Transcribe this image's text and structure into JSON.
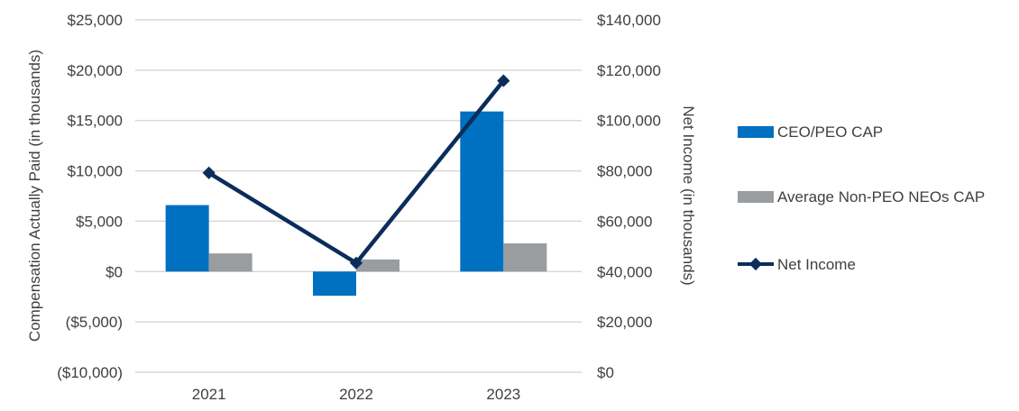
{
  "chart_data": {
    "type": "bar+line",
    "categories": [
      "2021",
      "2022",
      "2023"
    ],
    "series": [
      {
        "name": "CEO/PEO CAP",
        "type": "bar",
        "axis": "left",
        "color": "#0070C0",
        "values": [
          6600,
          -2400,
          15900
        ]
      },
      {
        "name": "Average Non-PEO NEOs CAP",
        "type": "bar",
        "axis": "left",
        "color": "#999DA0",
        "values": [
          1800,
          1200,
          2800
        ]
      },
      {
        "name": "Net Income",
        "type": "line",
        "axis": "right",
        "color": "#0B2D5B",
        "marker": "diamond",
        "values": [
          79200,
          43400,
          115800
        ]
      }
    ],
    "ylabel": "Compensation Actually Paid (in thousands)",
    "y2label": "Net Income (in thousands)",
    "ylim": [
      -10000,
      25000
    ],
    "y2lim": [
      0,
      140000
    ],
    "yticks": [
      "($10,000)",
      "($5,000)",
      "$0",
      "$5,000",
      "$10,000",
      "$15,000",
      "$20,000",
      "$25,000"
    ],
    "y2ticks": [
      "$0",
      "$20,000",
      "$40,000",
      "$60,000",
      "$80,000",
      "$100,000",
      "$120,000",
      "$140,000"
    ],
    "grid": true,
    "legend": "right"
  }
}
